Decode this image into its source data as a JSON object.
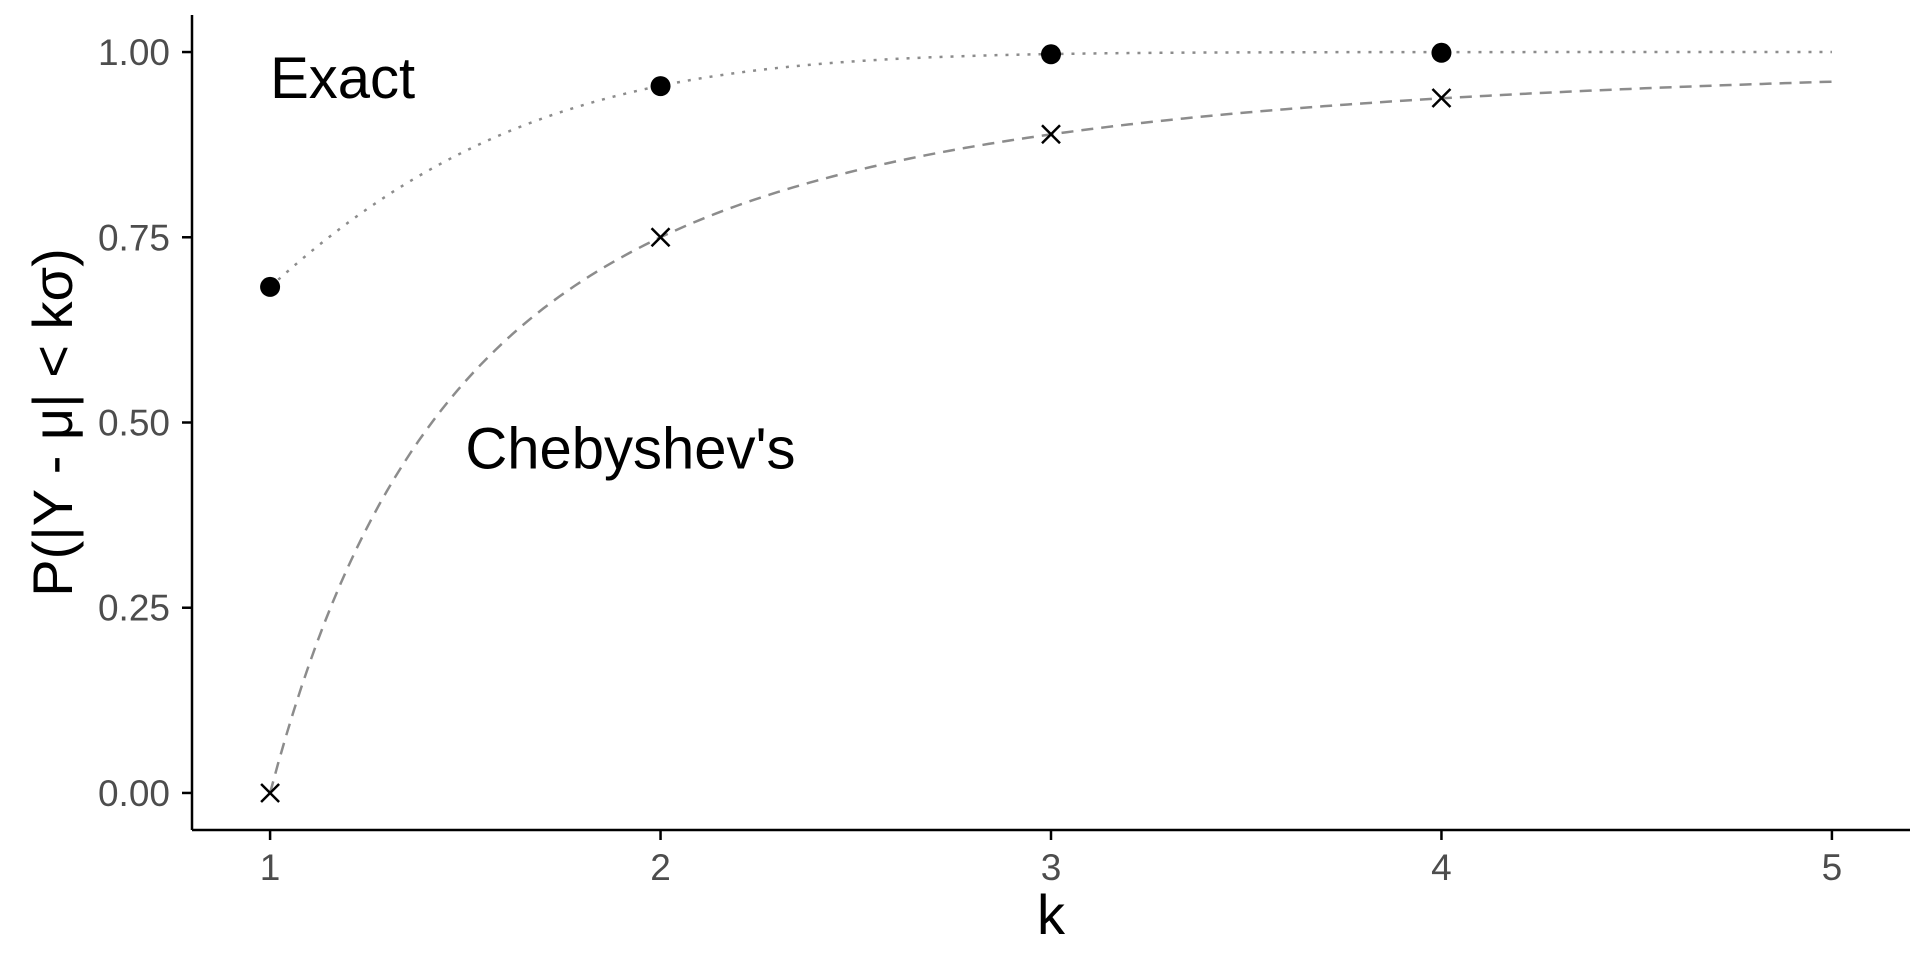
{
  "chart_data": {
    "type": "scatter",
    "xlabel": "k",
    "ylabel": "P(|Y - μ| < kσ)",
    "xlim": [
      0.8,
      5.2
    ],
    "ylim": [
      -0.05,
      1.05
    ],
    "x_ticks": [
      "1",
      "2",
      "3",
      "4",
      "5"
    ],
    "y_ticks": [
      "0.00",
      "0.25",
      "0.50",
      "0.75",
      "1.00"
    ],
    "grid": false,
    "legend": "none",
    "annotations": [
      {
        "id": "exact",
        "text": "Exact",
        "x": 1.0,
        "y": 0.965
      },
      {
        "id": "chebyshev",
        "text": "Chebyshev's",
        "x": 1.5,
        "y": 0.465
      }
    ],
    "series": [
      {
        "id": "exact",
        "marker": "filled-circle",
        "curve_style": "dotted",
        "x": [
          1,
          2,
          3,
          4
        ],
        "y": [
          0.683,
          0.954,
          0.997,
          0.999
        ]
      },
      {
        "id": "chebyshev",
        "marker": "cross",
        "curve_style": "dashed",
        "x": [
          1,
          2,
          3,
          4
        ],
        "y": [
          0.0,
          0.75,
          0.889,
          0.938
        ]
      }
    ],
    "colors": {
      "points": "#000000",
      "curves": "#8c8c8c",
      "axis": "#000000",
      "tick_text": "#4d4d4d"
    }
  }
}
